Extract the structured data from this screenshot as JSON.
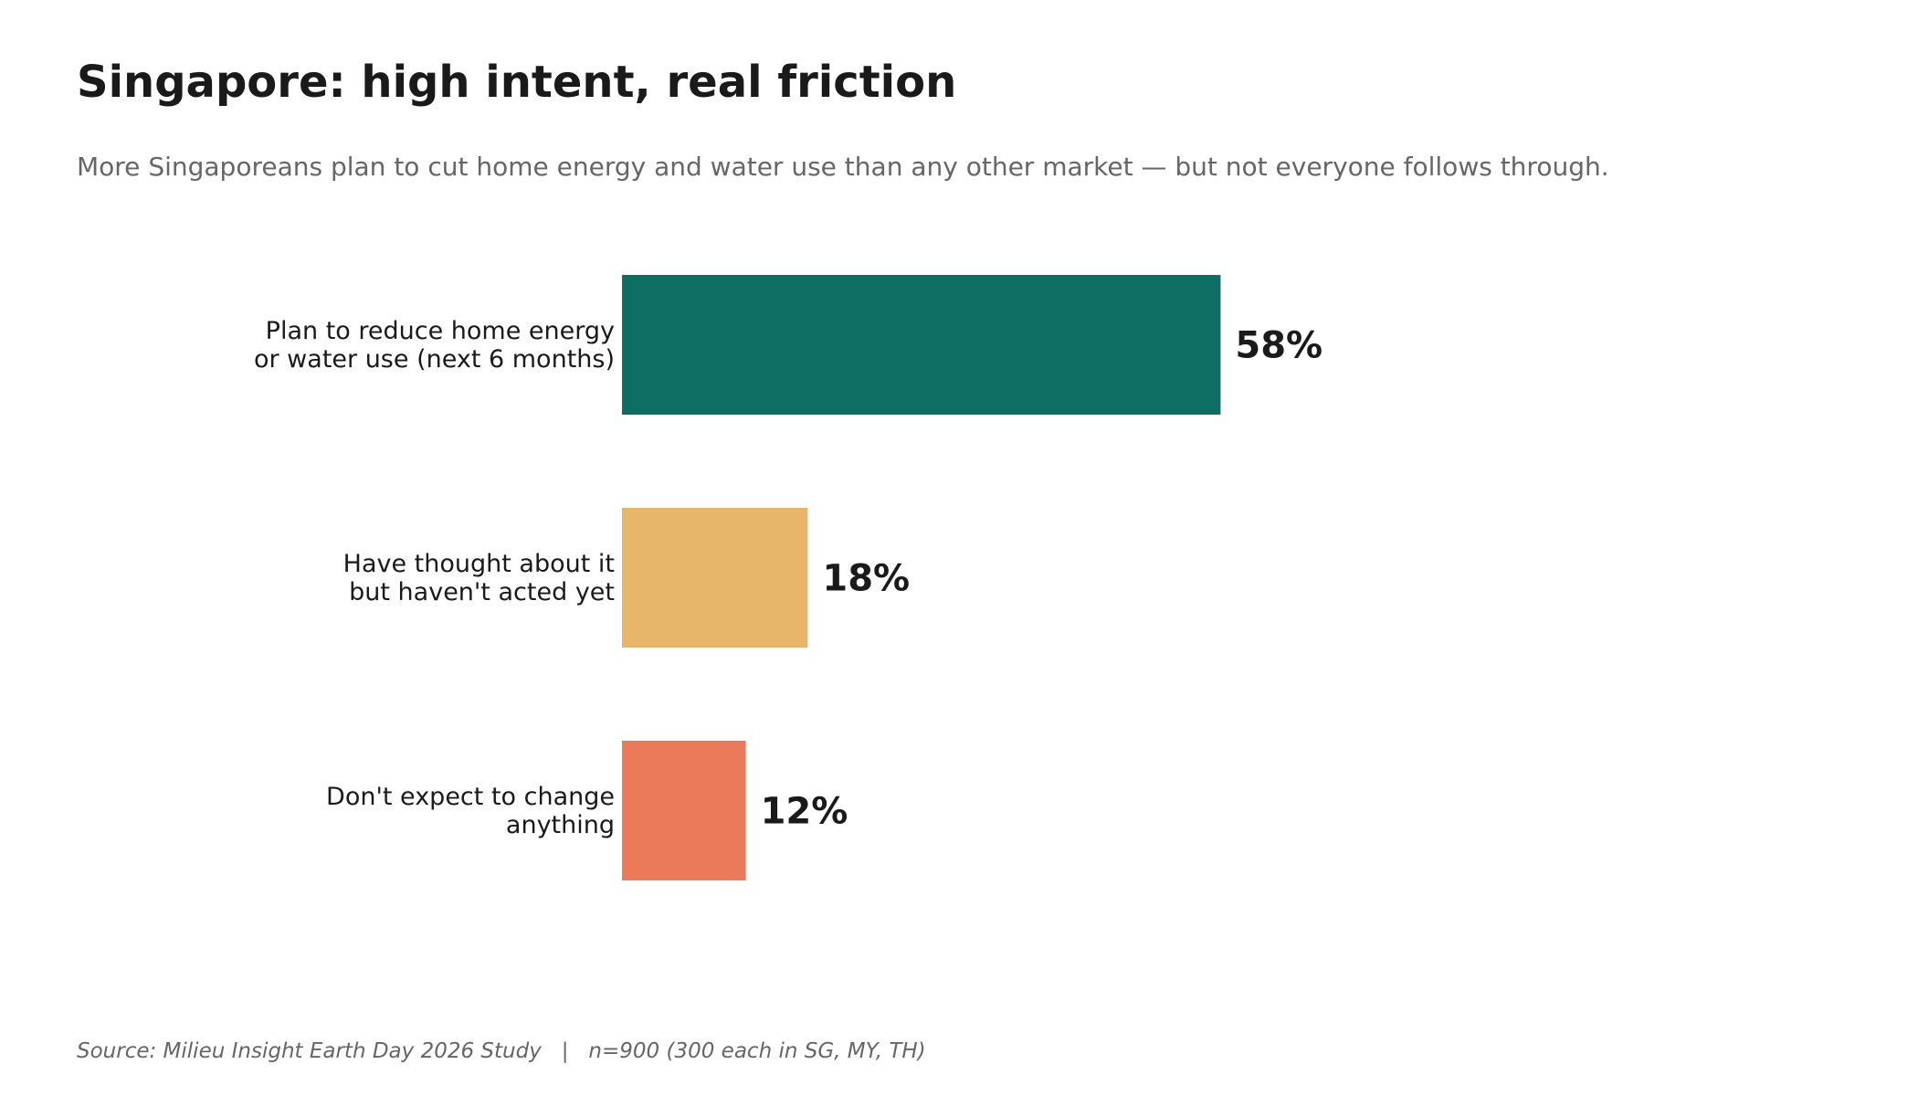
{
  "header": {
    "title": "Singapore: high intent, real friction",
    "subtitle": "More Singaporeans plan to cut home energy and water use than any other market — but not everyone follows through."
  },
  "footer": {
    "source": "Source: Milieu Insight Earth Day 2026 Study   |   n=900 (300 each in SG, MY, TH)"
  },
  "chart_data": {
    "type": "bar",
    "orientation": "horizontal",
    "categories": [
      [
        "Plan to reduce home energy",
        "or water use (next 6 months)"
      ],
      [
        "Have thought about it",
        "but haven't acted yet"
      ],
      [
        "Don't expect to change",
        "anything"
      ]
    ],
    "values": [
      58,
      18,
      12
    ],
    "value_labels": [
      "58%",
      "18%",
      "12%"
    ],
    "colors": [
      "#0f6e63",
      "#e8b66b",
      "#eb7a5a"
    ],
    "unit": "%",
    "xlim": [
      0,
      100
    ],
    "grid": false,
    "legend": "none"
  }
}
